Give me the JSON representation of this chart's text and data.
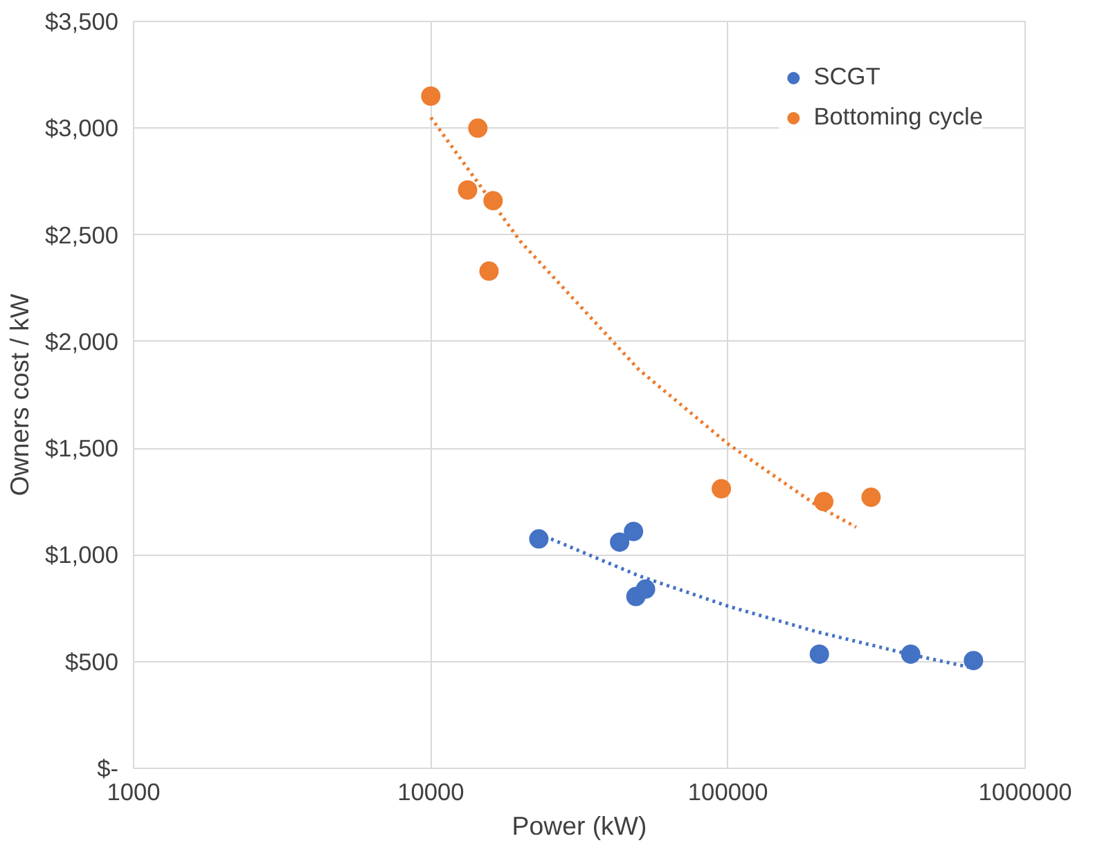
{
  "chart_data": {
    "type": "scatter",
    "xlabel": "Power (kW)",
    "ylabel": "Owners cost / kW",
    "log": "x",
    "grid": true,
    "legend": "top right",
    "marker": "circle",
    "xlim": [
      1000,
      1000000
    ],
    "xticks": [
      1000,
      10000,
      100000,
      1000000
    ],
    "ylim": [
      0,
      3500
    ],
    "yticks": [
      {
        "value": 0,
        "label": "$-"
      },
      {
        "value": 500,
        "label": "$500"
      },
      {
        "value": 1000,
        "label": "$1,000"
      },
      {
        "value": 1500,
        "label": "$1,500"
      },
      {
        "value": 2000,
        "label": "$2,000"
      },
      {
        "value": 2500,
        "label": "$2,500"
      },
      {
        "value": 3000,
        "label": "$3,000"
      },
      {
        "value": 3500,
        "label": "$3,500"
      }
    ],
    "series": [
      {
        "name": "SCGT",
        "color": "#4472c4",
        "x": [
          23100,
          43200,
          48100,
          49000,
          52800,
          203000,
          412000,
          670000
        ],
        "values": [
          1075,
          1060,
          1110,
          805,
          840,
          535,
          535,
          505
        ]
      },
      {
        "name": "Bottoming cycle",
        "color": "#ed7d31",
        "x": [
          10000,
          14400,
          13300,
          16200,
          15700,
          95000,
          210000,
          303000
        ],
        "values": [
          3150,
          3000,
          2710,
          2660,
          2330,
          1310,
          1250,
          1270
        ]
      },
      {
        "type": "line",
        "line_style": "dotted",
        "marker": "none",
        "color": "#4472c4",
        "x": [
          23000,
          50000,
          100000,
          200000,
          400000,
          670000
        ],
        "values": [
          1100,
          903,
          760,
          639,
          537,
          470
        ]
      },
      {
        "type": "line",
        "line_style": "dotted",
        "marker": "none",
        "color": "#ed7d31",
        "x": [
          10000,
          20000,
          50000,
          100000,
          200000,
          270000
        ],
        "values": [
          3050,
          2470,
          1870,
          1520,
          1230,
          1130
        ]
      }
    ]
  }
}
